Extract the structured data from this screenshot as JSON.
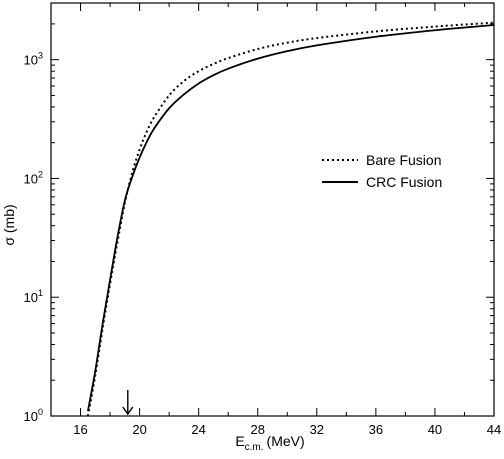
{
  "chart_data": {
    "type": "line",
    "xlabel": "E",
    "xlabel_sub": "c.m.",
    "xlabel_unit": "(MeV)",
    "ylabel": "σ (mb)",
    "xlim": [
      14,
      44
    ],
    "ylim": [
      1,
      3000
    ],
    "yscale": "log",
    "x_ticks": [
      16,
      20,
      24,
      28,
      32,
      36,
      40,
      44
    ],
    "y_ticks": [
      {
        "value": 1,
        "base": "10",
        "exp": "0"
      },
      {
        "value": 10,
        "base": "10",
        "exp": "1"
      },
      {
        "value": 100,
        "base": "10",
        "exp": "2"
      },
      {
        "value": 1000,
        "base": "10",
        "exp": "3"
      }
    ],
    "grid": false,
    "legend_position": "right",
    "arrow_marker_x": 19.2,
    "series": [
      {
        "name": "Bare Fusion",
        "style": "dotted",
        "x": [
          16.5,
          17.0,
          17.5,
          18.0,
          18.5,
          19.0,
          19.5,
          20.0,
          20.5,
          21.0,
          22.0,
          23.0,
          24.0,
          25.0,
          26.0,
          28.0,
          30.0,
          32.0,
          36.0,
          40.0,
          44.0
        ],
        "y": [
          1.0,
          2.2,
          5.5,
          13,
          29,
          62,
          112,
          175,
          250,
          330,
          500,
          660,
          800,
          920,
          1030,
          1230,
          1390,
          1520,
          1730,
          1900,
          2050
        ]
      },
      {
        "name": "CRC Fusion",
        "style": "solid",
        "x": [
          16.5,
          17.0,
          17.5,
          18.0,
          18.5,
          19.0,
          19.5,
          20.0,
          20.5,
          21.0,
          22.0,
          23.0,
          24.0,
          25.0,
          26.0,
          28.0,
          30.0,
          32.0,
          36.0,
          40.0,
          44.0
        ],
        "y": [
          1.1,
          2.4,
          6.0,
          14,
          32,
          65,
          103,
          150,
          205,
          265,
          390,
          510,
          630,
          740,
          840,
          1020,
          1180,
          1320,
          1560,
          1770,
          1960
        ]
      }
    ]
  }
}
